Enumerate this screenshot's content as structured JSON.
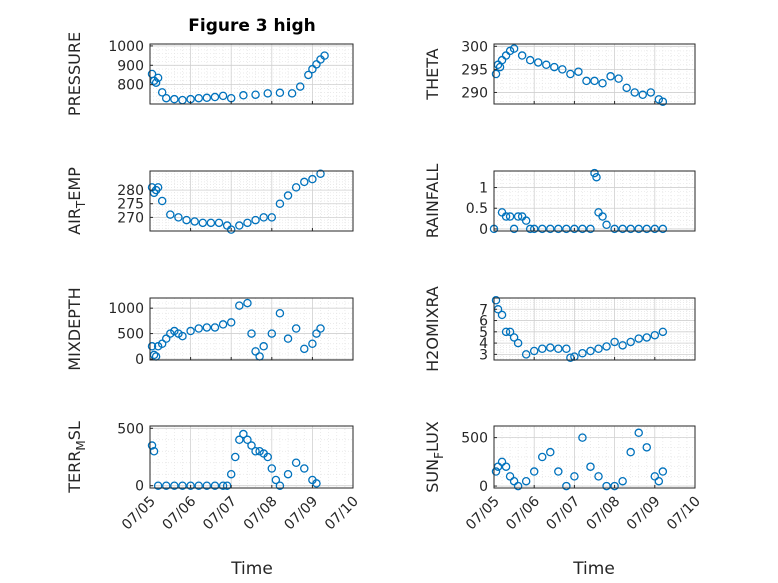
{
  "figure": {
    "title": "Figure 3 high",
    "marker_color": "#0072BD",
    "xlabel": "Time"
  },
  "chart_data": [
    {
      "type": "scatter",
      "ylabel": "PRESSURE",
      "yticks": [
        800,
        900,
        1000
      ],
      "ylim": [
        700,
        1010
      ],
      "xlim": [
        "07/05",
        "07/10"
      ],
      "grid": true,
      "title": "Figure 3 high",
      "x_unit": "days since 07/05 00:00",
      "x": [
        0.05,
        0.1,
        0.15,
        0.2,
        0.3,
        0.4,
        0.6,
        0.8,
        1.0,
        1.2,
        1.4,
        1.6,
        1.8,
        2.0,
        2.3,
        2.6,
        2.9,
        3.2,
        3.5,
        3.7,
        3.9,
        4.0,
        4.1,
        4.2,
        4.3
      ],
      "y": [
        855,
        820,
        810,
        835,
        760,
        730,
        725,
        720,
        725,
        730,
        732,
        736,
        742,
        730,
        745,
        748,
        755,
        758,
        755,
        790,
        850,
        880,
        905,
        930,
        950
      ]
    },
    {
      "type": "scatter",
      "ylabel": "THETA",
      "yticks": [
        290,
        295,
        300
      ],
      "ylim": [
        287.5,
        300.5
      ],
      "xlim": [
        "07/05",
        "07/10"
      ],
      "grid": true,
      "x": [
        0.05,
        0.1,
        0.15,
        0.2,
        0.3,
        0.4,
        0.5,
        0.7,
        0.9,
        1.1,
        1.3,
        1.5,
        1.7,
        1.9,
        2.1,
        2.3,
        2.5,
        2.7,
        2.9,
        3.1,
        3.3,
        3.5,
        3.7,
        3.9,
        4.1,
        4.2
      ],
      "y": [
        294,
        296,
        295.5,
        297,
        298,
        299,
        299.5,
        298,
        297,
        296.5,
        296,
        295.5,
        295,
        294,
        294.5,
        292.5,
        292.5,
        292,
        293.5,
        293,
        291,
        290,
        289.5,
        290,
        288.5,
        288
      ]
    },
    {
      "type": "scatter",
      "ylabel": "AIR_TEMP",
      "yticks": [
        270,
        275,
        280
      ],
      "ylim": [
        265,
        287
      ],
      "xlim": [
        "07/05",
        "07/10"
      ],
      "grid": true,
      "x": [
        0.05,
        0.1,
        0.15,
        0.2,
        0.3,
        0.5,
        0.7,
        0.9,
        1.1,
        1.3,
        1.5,
        1.7,
        1.9,
        2.0,
        2.2,
        2.4,
        2.6,
        2.8,
        3.0,
        3.2,
        3.4,
        3.6,
        3.8,
        4.0,
        4.2
      ],
      "y": [
        281,
        279,
        280,
        281,
        276,
        271,
        270,
        269,
        268.5,
        268,
        268,
        268,
        267,
        265.5,
        267,
        268,
        269,
        270,
        270,
        275,
        278,
        281,
        283,
        284,
        286
      ]
    },
    {
      "type": "scatter",
      "ylabel": "RAINFALL",
      "yticks": [
        0,
        0.5,
        1
      ],
      "ylim": [
        -0.05,
        1.4
      ],
      "xlim": [
        "07/05",
        "07/10"
      ],
      "grid": true,
      "x": [
        0.0,
        0.2,
        0.3,
        0.4,
        0.5,
        0.6,
        0.7,
        0.8,
        0.9,
        1.0,
        1.2,
        1.4,
        1.6,
        1.8,
        2.0,
        2.2,
        2.4,
        2.5,
        2.55,
        2.6,
        2.7,
        2.8,
        3.0,
        3.2,
        3.4,
        3.6,
        3.8,
        4.0,
        4.2
      ],
      "y": [
        0,
        0.4,
        0.3,
        0.3,
        0,
        0.3,
        0.3,
        0.2,
        0,
        0,
        0,
        0,
        0,
        0,
        0,
        0,
        0,
        1.35,
        1.25,
        0.4,
        0.3,
        0.1,
        0,
        0,
        0,
        0,
        0,
        0,
        0
      ]
    },
    {
      "type": "scatter",
      "ylabel": "MIXDEPTH",
      "yticks": [
        0,
        500,
        1000
      ],
      "ylim": [
        -20,
        1200
      ],
      "xlim": [
        "07/05",
        "07/10"
      ],
      "grid": true,
      "x": [
        0.05,
        0.1,
        0.15,
        0.2,
        0.3,
        0.4,
        0.5,
        0.6,
        0.7,
        0.8,
        1.0,
        1.2,
        1.4,
        1.6,
        1.8,
        2.0,
        2.2,
        2.4,
        2.5,
        2.6,
        2.7,
        2.8,
        3.0,
        3.2,
        3.4,
        3.6,
        3.8,
        4.0,
        4.1,
        4.2
      ],
      "y": [
        250,
        80,
        50,
        250,
        300,
        400,
        500,
        550,
        500,
        450,
        550,
        600,
        620,
        620,
        680,
        720,
        1050,
        1100,
        500,
        150,
        50,
        250,
        500,
        900,
        400,
        600,
        200,
        300,
        500,
        600
      ]
    },
    {
      "type": "scatter",
      "ylabel": "H2OMIXRA",
      "yticks": [
        3,
        4,
        5,
        6,
        7
      ],
      "ylim": [
        2.5,
        8
      ],
      "xlim": [
        "07/05",
        "07/10"
      ],
      "grid": true,
      "x": [
        0.05,
        0.1,
        0.2,
        0.3,
        0.4,
        0.5,
        0.6,
        0.8,
        1.0,
        1.2,
        1.4,
        1.6,
        1.8,
        1.9,
        2.0,
        2.2,
        2.4,
        2.6,
        2.8,
        3.0,
        3.2,
        3.4,
        3.6,
        3.8,
        4.0,
        4.2
      ],
      "y": [
        7.8,
        7.0,
        6.5,
        5.0,
        5.0,
        4.5,
        4.0,
        3.0,
        3.3,
        3.5,
        3.6,
        3.5,
        3.5,
        2.7,
        2.8,
        3.1,
        3.3,
        3.5,
        3.7,
        4.1,
        3.8,
        4.1,
        4.4,
        4.5,
        4.7,
        5.0
      ]
    },
    {
      "type": "scatter",
      "ylabel": "TERR_MSL",
      "yticks": [
        0,
        500
      ],
      "ylim": [
        -20,
        520
      ],
      "xlim": [
        "07/05",
        "07/10"
      ],
      "grid": true,
      "x": [
        0.05,
        0.1,
        0.2,
        0.4,
        0.6,
        0.8,
        1.0,
        1.2,
        1.4,
        1.6,
        1.8,
        1.9,
        2.0,
        2.1,
        2.2,
        2.3,
        2.4,
        2.5,
        2.6,
        2.7,
        2.8,
        2.9,
        3.0,
        3.1,
        3.2,
        3.4,
        3.6,
        3.8,
        4.0,
        4.1
      ],
      "y": [
        350,
        300,
        0,
        0,
        0,
        0,
        0,
        0,
        0,
        0,
        0,
        0,
        100,
        250,
        400,
        450,
        400,
        350,
        300,
        300,
        280,
        250,
        150,
        50,
        0,
        100,
        200,
        150,
        50,
        20
      ]
    },
    {
      "type": "scatter",
      "ylabel": "SUN_FLUX",
      "yticks": [
        0,
        500
      ],
      "ylim": [
        -20,
        620
      ],
      "xlim": [
        "07/05",
        "07/10"
      ],
      "grid": true,
      "x": [
        0.05,
        0.1,
        0.2,
        0.3,
        0.4,
        0.5,
        0.6,
        0.8,
        1.0,
        1.2,
        1.4,
        1.6,
        1.8,
        2.0,
        2.2,
        2.4,
        2.6,
        2.8,
        3.0,
        3.2,
        3.4,
        3.6,
        3.8,
        4.0,
        4.1,
        4.2
      ],
      "y": [
        150,
        200,
        250,
        200,
        100,
        50,
        0,
        50,
        150,
        300,
        350,
        150,
        0,
        100,
        500,
        200,
        100,
        0,
        0,
        50,
        350,
        550,
        400,
        100,
        50,
        150
      ]
    }
  ],
  "x_axis": {
    "ticks": [
      "07/05",
      "07/06",
      "07/07",
      "07/08",
      "07/09",
      "07/10"
    ],
    "tick_values": [
      0,
      1,
      2,
      3,
      4,
      5
    ]
  }
}
